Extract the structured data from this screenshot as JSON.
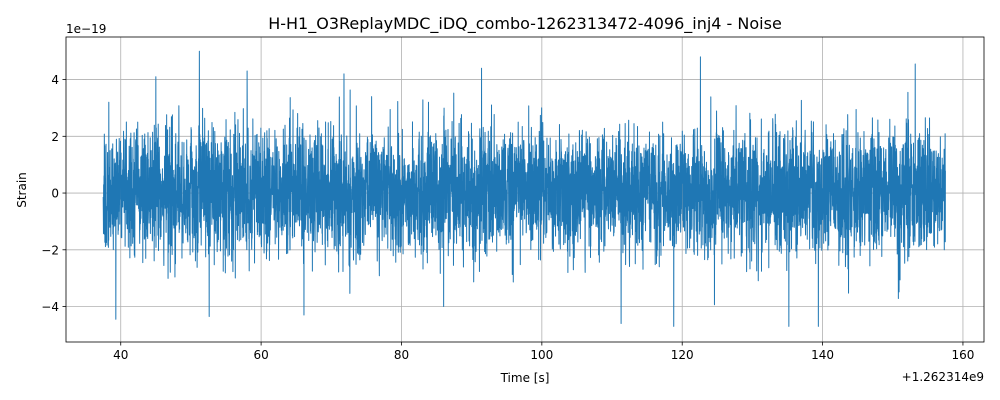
{
  "chart_data": {
    "type": "line",
    "title": "H-H1_O3ReplayMDC_iDQ_combo-1262313472-4096_inj4 - Noise",
    "xlabel": "Time [s]",
    "ylabel": "Strain",
    "x_offset_label": "+1.262314e9",
    "y_scale_label": "1e−19",
    "xlim": [
      32.2,
      163.0
    ],
    "ylim": [
      -5.25,
      5.5
    ],
    "x_ticks": [
      40,
      60,
      80,
      100,
      120,
      140,
      160
    ],
    "x_tick_labels": [
      "40",
      "60",
      "80",
      "100",
      "120",
      "140",
      "160"
    ],
    "y_ticks": [
      -4,
      -2,
      0,
      2,
      4
    ],
    "y_tick_labels": [
      "−4",
      "−2",
      "0",
      "2",
      "4"
    ],
    "grid": true,
    "line_color": "#1f77b4",
    "series": [
      {
        "x_range": [
          37.5,
          157.5
        ],
        "typical_amplitude": 2.0,
        "max": 5.0,
        "min": -4.7,
        "peaks": [
          {
            "x": 38.3,
            "y": 3.2
          },
          {
            "x": 39.3,
            "y": -4.45
          },
          {
            "x": 45.0,
            "y": 4.1
          },
          {
            "x": 51.2,
            "y": 5.0
          },
          {
            "x": 52.6,
            "y": -4.35
          },
          {
            "x": 58.0,
            "y": 4.3
          },
          {
            "x": 66.1,
            "y": -4.3
          },
          {
            "x": 71.8,
            "y": 4.2
          },
          {
            "x": 86.0,
            "y": -4.0
          },
          {
            "x": 91.4,
            "y": 4.4
          },
          {
            "x": 111.3,
            "y": -4.6
          },
          {
            "x": 118.8,
            "y": -4.7
          },
          {
            "x": 122.6,
            "y": 4.8
          },
          {
            "x": 135.2,
            "y": -4.7
          },
          {
            "x": 139.4,
            "y": -4.7
          },
          {
            "x": 153.2,
            "y": 4.55
          }
        ]
      }
    ]
  }
}
